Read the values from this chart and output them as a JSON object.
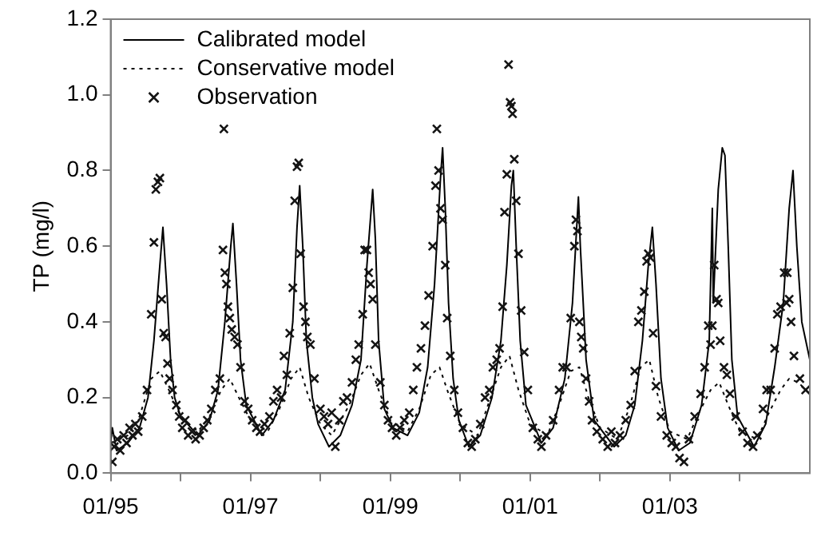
{
  "chart_data": {
    "type": "line",
    "ylabel": "TP (mg/l)",
    "legend": "top left",
    "grid": false,
    "xlim": [
      "1995-01",
      "2005-01"
    ],
    "xticks": [
      {
        "value": "1995-01",
        "label": "01/95"
      },
      {
        "value": "1996-01",
        "label": null
      },
      {
        "value": "1997-01",
        "label": "01/97"
      },
      {
        "value": "1998-01",
        "label": null
      },
      {
        "value": "1999-01",
        "label": "01/99"
      },
      {
        "value": "2000-01",
        "label": null
      },
      {
        "value": "2001-01",
        "label": "01/01"
      },
      {
        "value": "2002-01",
        "label": null
      },
      {
        "value": "2003-01",
        "label": "01/03"
      },
      {
        "value": "2004-01",
        "label": null
      }
    ],
    "ylim": [
      0,
      1.2
    ],
    "yticks": [
      {
        "value": 0,
        "label": "0.0"
      },
      {
        "value": 0.2,
        "label": "0.2"
      },
      {
        "value": 0.4,
        "label": "0.4"
      },
      {
        "value": 0.6,
        "label": "0.6"
      },
      {
        "value": 0.8,
        "label": "0.8"
      },
      {
        "value": 1,
        "label": "1.0"
      },
      {
        "value": 1.2,
        "label": "1.2"
      }
    ],
    "series": [
      {
        "name": "Calibrated model",
        "type": "line",
        "color": "#000000",
        "line_style": "solid",
        "marker": "none",
        "x": [
          "1995-01-01",
          "1995-01-10",
          "1995-02-01",
          "1995-04-01",
          "1995-06-01",
          "1995-07-15",
          "1995-08-15",
          "1995-09-15",
          "1995-10-01",
          "1995-10-20",
          "1995-11-10",
          "1995-12-01",
          "1996-01-01",
          "1996-04-01",
          "1996-06-01",
          "1996-07-15",
          "1996-08-20",
          "1996-09-20",
          "1996-10-01",
          "1996-10-20",
          "1996-11-10",
          "1996-12-10",
          "1997-03-01",
          "1997-05-01",
          "1997-07-01",
          "1997-08-10",
          "1997-09-01",
          "1997-09-15",
          "1997-10-01",
          "1997-10-20",
          "1997-11-20",
          "1997-12-20",
          "1998-02-15",
          "1998-04-15",
          "1998-06-15",
          "1998-08-01",
          "1998-09-01",
          "1998-10-01",
          "1998-10-15",
          "1998-11-01",
          "1998-12-01",
          "1999-01-15",
          "1999-04-01",
          "1999-06-01",
          "1999-07-15",
          "1999-08-20",
          "1999-09-20",
          "1999-10-01",
          "1999-10-15",
          "1999-11-01",
          "1999-11-25",
          "1999-12-25",
          "2000-02-15",
          "2000-04-15",
          "2000-06-15",
          "2000-08-01",
          "2000-09-01",
          "2000-09-25",
          "2000-10-05",
          "2000-10-20",
          "2000-11-10",
          "2000-12-10",
          "2001-03-01",
          "2001-05-01",
          "2001-07-01",
          "2001-08-10",
          "2001-09-01",
          "2001-09-10",
          "2001-09-20",
          "2001-10-20",
          "2001-12-01",
          "2002-03-15",
          "2002-05-15",
          "2002-07-01",
          "2002-08-10",
          "2002-09-10",
          "2002-10-01",
          "2002-10-20",
          "2002-11-15",
          "2002-12-20",
          "2003-02-15",
          "2003-04-15",
          "2003-06-15",
          "2003-07-25",
          "2003-08-10",
          "2003-08-15",
          "2003-09-10",
          "2003-10-01",
          "2003-10-15",
          "2003-11-01",
          "2003-11-20",
          "2003-12-20",
          "2004-03-15",
          "2004-05-15",
          "2004-07-01",
          "2004-08-15",
          "2004-09-15",
          "2004-10-05",
          "2004-10-25",
          "2004-11-20",
          "2005-01-01"
        ],
        "values": [
          0.08,
          0.12,
          0.06,
          0.08,
          0.12,
          0.2,
          0.35,
          0.55,
          0.65,
          0.5,
          0.3,
          0.2,
          0.15,
          0.1,
          0.14,
          0.22,
          0.4,
          0.6,
          0.66,
          0.5,
          0.3,
          0.18,
          0.1,
          0.14,
          0.22,
          0.4,
          0.65,
          0.76,
          0.6,
          0.35,
          0.2,
          0.13,
          0.07,
          0.1,
          0.18,
          0.3,
          0.55,
          0.75,
          0.62,
          0.35,
          0.17,
          0.12,
          0.1,
          0.16,
          0.28,
          0.5,
          0.78,
          0.86,
          0.7,
          0.45,
          0.25,
          0.14,
          0.07,
          0.1,
          0.2,
          0.35,
          0.55,
          0.76,
          0.8,
          0.6,
          0.35,
          0.18,
          0.08,
          0.12,
          0.25,
          0.45,
          0.65,
          0.73,
          0.6,
          0.3,
          0.14,
          0.07,
          0.1,
          0.18,
          0.35,
          0.55,
          0.65,
          0.5,
          0.25,
          0.12,
          0.06,
          0.08,
          0.18,
          0.35,
          0.7,
          0.45,
          0.75,
          0.86,
          0.84,
          0.6,
          0.3,
          0.15,
          0.07,
          0.13,
          0.28,
          0.45,
          0.7,
          0.8,
          0.6,
          0.4,
          0.3
        ]
      },
      {
        "name": "Conservative model",
        "type": "line",
        "color": "#0a0a0a",
        "line_style": "dotted",
        "marker": "none",
        "x": [
          "1995-01",
          "1995-04",
          "1995-06",
          "1995-08",
          "1995-09-15",
          "1995-11",
          "1996-01",
          "1996-04",
          "1996-06",
          "1996-08",
          "1996-09-15",
          "1996-11",
          "1997-01",
          "1997-04",
          "1997-06",
          "1997-08",
          "1997-09-15",
          "1997-11",
          "1998-01",
          "1998-03",
          "1998-06",
          "1998-08",
          "1998-09-15",
          "1998-11",
          "1999-01",
          "1999-04",
          "1999-06",
          "1999-08",
          "1999-09-15",
          "1999-11",
          "2000-01",
          "2000-04",
          "2000-06",
          "2000-08",
          "2000-09-15",
          "2000-11",
          "2001-01",
          "2001-04",
          "2001-06",
          "2001-08",
          "2001-09-15",
          "2001-11",
          "2002-01",
          "2002-04",
          "2002-06",
          "2002-08",
          "2002-09-15",
          "2002-11",
          "2003-01",
          "2003-04",
          "2003-06",
          "2003-08",
          "2003-09-15",
          "2003-11",
          "2004-01",
          "2004-04",
          "2004-06",
          "2004-08",
          "2004-09-15",
          "2004-11",
          "2005-01"
        ],
        "values": [
          0.08,
          0.1,
          0.15,
          0.25,
          0.27,
          0.22,
          0.15,
          0.11,
          0.15,
          0.22,
          0.25,
          0.2,
          0.14,
          0.11,
          0.17,
          0.25,
          0.28,
          0.2,
          0.13,
          0.1,
          0.18,
          0.26,
          0.29,
          0.22,
          0.14,
          0.11,
          0.17,
          0.26,
          0.28,
          0.21,
          0.13,
          0.1,
          0.19,
          0.28,
          0.31,
          0.22,
          0.13,
          0.1,
          0.18,
          0.27,
          0.28,
          0.2,
          0.12,
          0.09,
          0.17,
          0.28,
          0.3,
          0.2,
          0.11,
          0.09,
          0.16,
          0.22,
          0.24,
          0.18,
          0.11,
          0.09,
          0.16,
          0.22,
          0.25,
          0.24,
          0.21
        ]
      },
      {
        "name": "Observation",
        "type": "scatter",
        "color": "#141414",
        "marker": "cross",
        "x": [
          "1995-01-10",
          "1995-01-20",
          "1995-02-05",
          "1995-02-20",
          "1995-03-10",
          "1995-03-25",
          "1995-04-10",
          "1995-04-25",
          "1995-05-10",
          "1995-05-25",
          "1995-06-15",
          "1995-07-10",
          "1995-08-01",
          "1995-08-15",
          "1995-08-25",
          "1995-09-05",
          "1995-09-15",
          "1995-09-25",
          "1995-10-05",
          "1995-10-15",
          "1995-10-25",
          "1995-11-05",
          "1995-11-20",
          "1995-12-10",
          "1995-12-25",
          "1996-01-10",
          "1996-01-25",
          "1996-02-10",
          "1996-03-01",
          "1996-03-20",
          "1996-04-10",
          "1996-05-01",
          "1996-05-20",
          "1996-06-10",
          "1996-07-01",
          "1996-07-25",
          "1996-08-10",
          "1996-08-15",
          "1996-08-20",
          "1996-08-28",
          "1996-09-05",
          "1996-09-15",
          "1996-09-25",
          "1996-10-10",
          "1996-10-25",
          "1996-11-10",
          "1996-12-01",
          "1996-12-20",
          "1997-01-10",
          "1997-02-01",
          "1997-02-20",
          "1997-03-15",
          "1997-04-10",
          "1997-05-01",
          "1997-05-20",
          "1997-06-10",
          "1997-06-25",
          "1997-07-10",
          "1997-07-25",
          "1997-08-10",
          "1997-08-20",
          "1997-09-01",
          "1997-09-10",
          "1997-09-20",
          "1997-10-05",
          "1997-10-15",
          "1997-10-25",
          "1997-11-10",
          "1997-12-01",
          "1998-01-01",
          "1998-01-20",
          "1998-02-10",
          "1998-03-01",
          "1998-03-20",
          "1998-04-10",
          "1998-05-01",
          "1998-05-20",
          "1998-06-15",
          "1998-07-05",
          "1998-07-20",
          "1998-08-10",
          "1998-08-20",
          "1998-09-01",
          "1998-09-10",
          "1998-09-20",
          "1998-10-01",
          "1998-10-15",
          "1998-11-10",
          "1998-12-01",
          "1998-12-20",
          "1999-01-10",
          "1999-02-01",
          "1999-02-20",
          "1999-03-15",
          "1999-04-10",
          "1999-05-01",
          "1999-05-20",
          "1999-06-10",
          "1999-07-01",
          "1999-07-20",
          "1999-08-10",
          "1999-08-25",
          "1999-09-01",
          "1999-09-10",
          "1999-09-20",
          "1999-10-01",
          "1999-10-15",
          "1999-10-25",
          "1999-11-10",
          "1999-12-01",
          "1999-12-20",
          "2000-01-15",
          "2000-02-10",
          "2000-03-01",
          "2000-03-20",
          "2000-04-15",
          "2000-05-10",
          "2000-06-01",
          "2000-06-20",
          "2000-07-10",
          "2000-07-25",
          "2000-08-10",
          "2000-08-20",
          "2000-09-01",
          "2000-09-10",
          "2000-09-18",
          "2000-09-25",
          "2000-10-01",
          "2000-10-10",
          "2000-10-20",
          "2000-11-01",
          "2000-11-15",
          "2000-12-01",
          "2000-12-20",
          "2001-01-15",
          "2001-02-10",
          "2001-03-01",
          "2001-03-25",
          "2001-05-01",
          "2001-06-01",
          "2001-06-20",
          "2001-07-10",
          "2001-08-01",
          "2001-08-20",
          "2001-08-28",
          "2001-09-05",
          "2001-09-15",
          "2001-09-25",
          "2001-10-05",
          "2001-10-20",
          "2001-11-05",
          "2001-11-20",
          "2001-12-15",
          "2002-01-15",
          "2002-02-10",
          "2002-03-01",
          "2002-03-20",
          "2002-04-15",
          "2002-05-15",
          "2002-06-10",
          "2002-07-01",
          "2002-07-20",
          "2002-08-05",
          "2002-08-20",
          "2002-09-01",
          "2002-09-10",
          "2002-09-20",
          "2002-10-05",
          "2002-10-20",
          "2002-11-15",
          "2002-12-15",
          "2003-01-10",
          "2003-02-01",
          "2003-02-20",
          "2003-03-15",
          "2003-04-10",
          "2003-05-10",
          "2003-06-10",
          "2003-07-01",
          "2003-07-20",
          "2003-08-01",
          "2003-08-10",
          "2003-08-20",
          "2003-09-01",
          "2003-09-10",
          "2003-09-20",
          "2003-10-10",
          "2003-10-25",
          "2003-11-10",
          "2003-12-10",
          "2004-01-15",
          "2004-02-10",
          "2004-03-10",
          "2004-04-01",
          "2004-05-01",
          "2004-05-20",
          "2004-06-10",
          "2004-07-01",
          "2004-07-15",
          "2004-08-01",
          "2004-08-20",
          "2004-09-01",
          "2004-09-05",
          "2004-09-15",
          "2004-09-25",
          "2004-10-10",
          "2004-11-10",
          "2004-12-10"
        ],
        "values": [
          0.03,
          0.07,
          0.09,
          0.06,
          0.1,
          0.08,
          0.12,
          0.1,
          0.13,
          0.11,
          0.15,
          0.22,
          0.42,
          0.61,
          0.75,
          0.77,
          0.78,
          0.46,
          0.37,
          0.36,
          0.29,
          0.25,
          0.22,
          0.18,
          0.15,
          0.12,
          0.14,
          0.1,
          0.11,
          0.09,
          0.1,
          0.12,
          0.14,
          0.17,
          0.22,
          0.25,
          0.59,
          0.91,
          0.53,
          0.5,
          0.44,
          0.41,
          0.38,
          0.36,
          0.34,
          0.28,
          0.19,
          0.17,
          0.14,
          0.12,
          0.11,
          0.13,
          0.15,
          0.19,
          0.22,
          0.2,
          0.31,
          0.26,
          0.37,
          0.49,
          0.72,
          0.81,
          0.82,
          0.58,
          0.44,
          0.4,
          0.36,
          0.34,
          0.25,
          0.17,
          0.15,
          0.13,
          0.16,
          0.07,
          0.14,
          0.19,
          0.2,
          0.24,
          0.3,
          0.34,
          0.42,
          0.59,
          0.59,
          0.53,
          0.5,
          0.46,
          0.34,
          0.24,
          0.18,
          0.14,
          0.12,
          0.1,
          0.12,
          0.14,
          0.16,
          0.22,
          0.28,
          0.33,
          0.39,
          0.47,
          0.6,
          0.76,
          0.91,
          0.8,
          0.7,
          0.67,
          0.55,
          0.41,
          0.31,
          0.22,
          0.16,
          0.12,
          0.08,
          0.07,
          0.09,
          0.13,
          0.2,
          0.22,
          0.28,
          0.3,
          0.33,
          0.44,
          0.69,
          0.79,
          1.08,
          0.98,
          0.97,
          0.95,
          0.83,
          0.72,
          0.58,
          0.43,
          0.32,
          0.22,
          0.12,
          0.09,
          0.07,
          0.1,
          0.14,
          0.22,
          0.28,
          0.28,
          0.41,
          0.6,
          0.67,
          0.64,
          0.4,
          0.36,
          0.33,
          0.25,
          0.19,
          0.14,
          0.11,
          0.09,
          0.07,
          0.11,
          0.08,
          0.1,
          0.14,
          0.18,
          0.27,
          0.4,
          0.43,
          0.48,
          0.56,
          0.58,
          0.57,
          0.37,
          0.23,
          0.15,
          0.1,
          0.08,
          0.07,
          0.04,
          0.03,
          0.09,
          0.15,
          0.21,
          0.28,
          0.39,
          0.34,
          0.39,
          0.55,
          0.46,
          0.45,
          0.35,
          0.28,
          0.26,
          0.21,
          0.15,
          0.11,
          0.08,
          0.07,
          0.1,
          0.17,
          0.22,
          0.22,
          0.33,
          0.42,
          0.44,
          0.53,
          0.45,
          0.53,
          0.46,
          0.4,
          0.31,
          0.25,
          0.22
        ]
      }
    ]
  }
}
